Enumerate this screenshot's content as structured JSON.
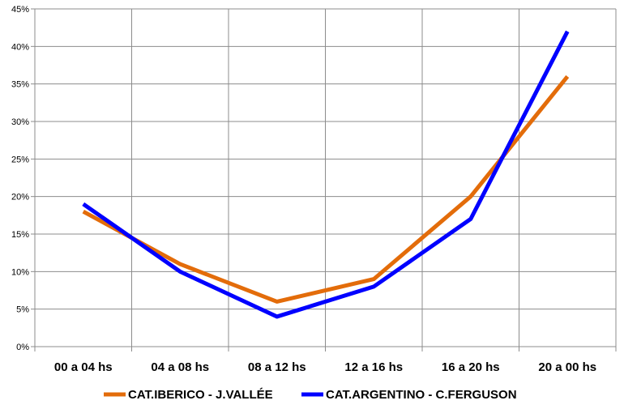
{
  "chart_data": {
    "type": "line",
    "title": "",
    "xlabel": "",
    "ylabel": "",
    "categories": [
      "00 a 04 hs",
      "04 a 08 hs",
      "08 a 12 hs",
      "12 a 16 hs",
      "16 a 20 hs",
      "20 a 00 hs"
    ],
    "ylim": [
      0,
      45
    ],
    "yticks": [
      0,
      5,
      10,
      15,
      20,
      25,
      30,
      35,
      40,
      45
    ],
    "ytick_format": "{v}%",
    "grid": true,
    "legend_position": "bottom",
    "series": [
      {
        "name": "CAT.IBERICO - J.VALLÉE",
        "color": "#E36C0A",
        "values": [
          18,
          11,
          6,
          9,
          20,
          36
        ]
      },
      {
        "name": "CAT.ARGENTINO - C.FERGUSON",
        "color": "#0000FF",
        "values": [
          19,
          10,
          4,
          8,
          17,
          42
        ]
      }
    ]
  }
}
